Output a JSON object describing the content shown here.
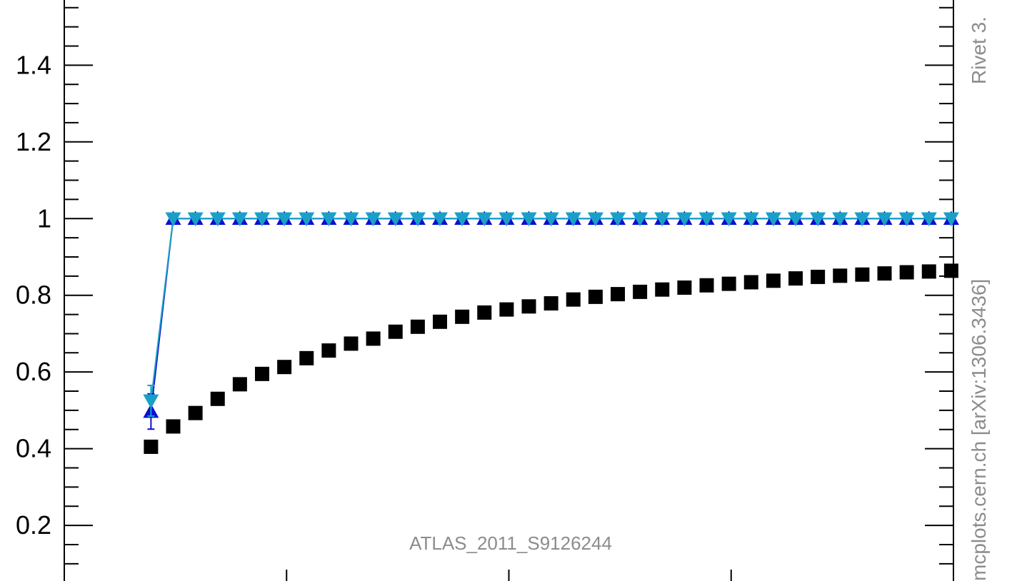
{
  "chart_data": {
    "type": "scatter",
    "title": "",
    "xlabel": "",
    "ylabel": "",
    "xlim": [
      0,
      40
    ],
    "ylim": [
      0.055,
      1.57
    ],
    "grid": false,
    "y_ticks": [
      {
        "value": 0.2,
        "label": "0.2"
      },
      {
        "value": 0.4,
        "label": "0.4"
      },
      {
        "value": 0.6,
        "label": "0.6"
      },
      {
        "value": 0.8,
        "label": "0.8"
      },
      {
        "value": 1.0,
        "label": "1"
      },
      {
        "value": 1.2,
        "label": "1.2"
      },
      {
        "value": 1.4,
        "label": "1.4"
      }
    ],
    "x_major_ticks": [
      10,
      20,
      30,
      40
    ],
    "x": [
      3.9,
      4.9,
      5.9,
      6.9,
      7.9,
      8.9,
      9.9,
      10.9,
      11.9,
      12.9,
      13.9,
      14.9,
      15.9,
      16.9,
      17.9,
      18.9,
      19.9,
      20.9,
      21.9,
      22.9,
      23.9,
      24.9,
      25.9,
      26.9,
      27.9,
      28.9,
      29.9,
      30.9,
      31.9,
      32.9,
      33.9,
      34.9,
      35.9,
      36.9,
      37.9,
      38.9,
      39.9
    ],
    "series": [
      {
        "marker": "square",
        "color": "#000000",
        "values": [
          0.405,
          0.458,
          0.493,
          0.53,
          0.568,
          0.595,
          0.613,
          0.636,
          0.656,
          0.674,
          0.687,
          0.705,
          0.718,
          0.731,
          0.744,
          0.755,
          0.763,
          0.771,
          0.779,
          0.789,
          0.796,
          0.803,
          0.809,
          0.815,
          0.82,
          0.826,
          0.83,
          0.834,
          0.838,
          0.844,
          0.848,
          0.851,
          0.854,
          0.857,
          0.86,
          0.862,
          0.864
        ]
      },
      {
        "marker": "triangle-up",
        "color": "#0b0fd0",
        "values": [
          0.497,
          1.0,
          1.0,
          1.0,
          1.0,
          1.0,
          1.0,
          1.0,
          1.0,
          1.0,
          1.0,
          1.0,
          1.0,
          1.0,
          1.0,
          1.0,
          1.0,
          1.0,
          1.0,
          1.0,
          1.0,
          1.0,
          1.0,
          1.0,
          1.0,
          1.0,
          1.0,
          1.0,
          1.0,
          1.0,
          1.0,
          1.0,
          1.0,
          1.0,
          1.0,
          1.0,
          1.0
        ],
        "errors": [
          0.046,
          0,
          0,
          0,
          0,
          0,
          0,
          0,
          0,
          0,
          0,
          0,
          0,
          0,
          0,
          0,
          0,
          0,
          0,
          0,
          0,
          0,
          0,
          0,
          0,
          0,
          0,
          0,
          0,
          0,
          0,
          0,
          0,
          0,
          0,
          0,
          0
        ]
      },
      {
        "marker": "triangle-down",
        "color": "#1aa0c8",
        "values": [
          0.525,
          1.0,
          1.0,
          1.0,
          1.0,
          1.0,
          1.0,
          1.0,
          1.0,
          1.0,
          1.0,
          1.0,
          1.0,
          1.0,
          1.0,
          1.0,
          1.0,
          1.0,
          1.0,
          1.0,
          1.0,
          1.0,
          1.0,
          1.0,
          1.0,
          1.0,
          1.0,
          1.0,
          1.0,
          1.0,
          1.0,
          1.0,
          1.0,
          1.0,
          1.0,
          1.0,
          1.0
        ],
        "errors": [
          0.04,
          0,
          0,
          0,
          0,
          0,
          0,
          0,
          0,
          0,
          0,
          0,
          0,
          0,
          0,
          0,
          0,
          0,
          0,
          0,
          0,
          0,
          0,
          0,
          0,
          0,
          0,
          0,
          0,
          0,
          0,
          0,
          0,
          0,
          0,
          0,
          0
        ]
      }
    ],
    "annotations": {
      "analysis_id": "ATLAS_2011_S9126244",
      "side_top": "Rivet 3.",
      "side_bottom": "mcplots.cern.ch [arXiv:1306.3436]"
    }
  }
}
